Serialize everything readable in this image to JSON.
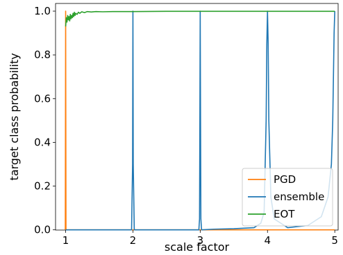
{
  "chart_data": {
    "type": "line",
    "xlabel": "scale factor",
    "ylabel": "target class probability",
    "xlim": [
      0.85,
      5.05
    ],
    "ylim": [
      -0.001,
      1.035
    ],
    "xticks": [
      1,
      2,
      3,
      4,
      5
    ],
    "yticks": [
      0.0,
      0.2,
      0.4,
      0.6,
      0.8,
      1.0
    ],
    "ytick_labels": [
      "0.0",
      "0.2",
      "0.4",
      "0.6",
      "0.8",
      "1.0"
    ],
    "xtick_labels": [
      "1",
      "2",
      "3",
      "4",
      "5"
    ],
    "grid": false,
    "legend": {
      "placement": "bottom-right"
    },
    "series": [
      {
        "name": "PGD",
        "color": "#ff7f0e",
        "x": [
          0.995,
          1.0,
          1.005,
          1.01,
          5.0
        ],
        "y": [
          0.0,
          1.0,
          0.0,
          0.0,
          0.0
        ]
      },
      {
        "name": "ensemble",
        "color": "#1f77b4",
        "x": [
          1.0,
          1.98,
          1.995,
          2.0,
          2.005,
          2.02,
          2.98,
          2.99,
          2.995,
          3.0,
          3.005,
          3.01,
          3.02,
          3.2,
          3.5,
          3.8,
          3.9,
          3.95,
          3.98,
          3.99,
          4.0,
          4.01,
          4.02,
          4.05,
          4.1,
          4.3,
          4.6,
          4.8,
          4.9,
          4.95,
          4.97,
          4.98,
          4.99,
          5.0
        ],
        "y": [
          0.0,
          0.0,
          0.3,
          1.0,
          0.3,
          0.0,
          0.0,
          0.05,
          0.5,
          1.0,
          0.5,
          0.05,
          0.0,
          0.003,
          0.005,
          0.01,
          0.03,
          0.08,
          0.5,
          0.85,
          1.0,
          0.85,
          0.5,
          0.15,
          0.05,
          0.01,
          0.02,
          0.06,
          0.15,
          0.3,
          0.5,
          0.7,
          0.9,
          1.0
        ]
      },
      {
        "name": "EOT",
        "color": "#2ca02c",
        "x": [
          1.0,
          1.01,
          1.02,
          1.03,
          1.04,
          1.05,
          1.06,
          1.07,
          1.08,
          1.09,
          1.1,
          1.11,
          1.12,
          1.13,
          1.14,
          1.15,
          1.17,
          1.19,
          1.21,
          1.24,
          1.28,
          1.32,
          1.38,
          1.45,
          1.55,
          1.7,
          2.0,
          2.5,
          3.0,
          3.5,
          4.0,
          4.5,
          5.0
        ],
        "y": [
          0.93,
          0.97,
          0.95,
          0.98,
          0.96,
          0.975,
          0.955,
          0.985,
          0.965,
          0.98,
          0.97,
          0.99,
          0.975,
          0.995,
          0.98,
          0.99,
          0.985,
          0.995,
          0.99,
          0.997,
          0.993,
          0.998,
          0.996,
          0.998,
          0.997,
          0.998,
          0.998,
          0.999,
          0.999,
          0.999,
          0.999,
          0.999,
          0.999
        ]
      }
    ]
  }
}
